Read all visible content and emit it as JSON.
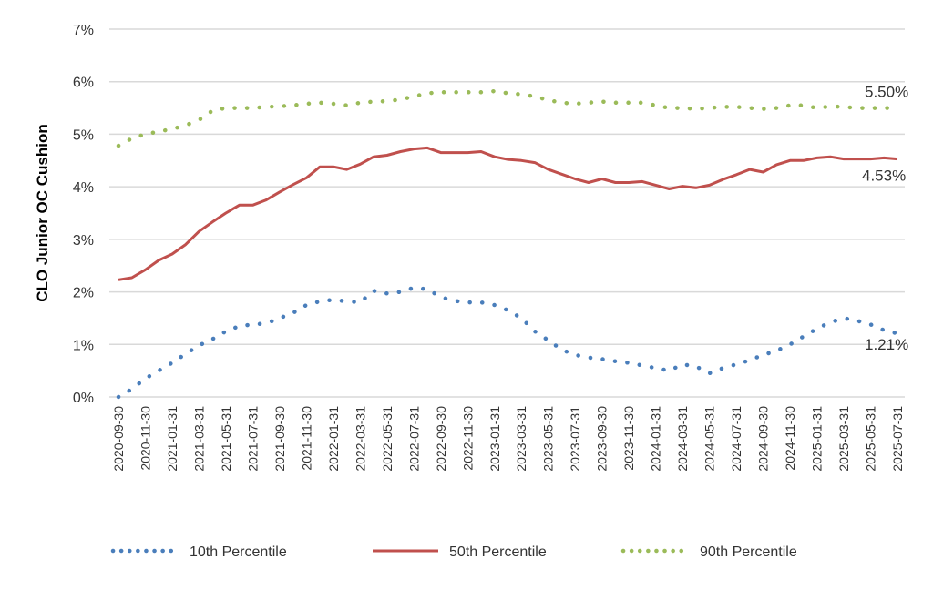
{
  "chart_data": {
    "type": "line",
    "title": "",
    "xlabel": "",
    "ylabel": "CLO Junior OC Cushion",
    "ylim": [
      0,
      7
    ],
    "yticks": [
      "0%",
      "1%",
      "2%",
      "3%",
      "4%",
      "5%",
      "6%",
      "7%"
    ],
    "grid": true,
    "legend_position": "bottom",
    "x": [
      "2020-09-30",
      "2020-10-31",
      "2020-11-30",
      "2020-12-31",
      "2021-01-31",
      "2021-02-28",
      "2021-03-31",
      "2021-04-30",
      "2021-05-31",
      "2021-06-30",
      "2021-07-31",
      "2021-08-31",
      "2021-09-30",
      "2021-10-31",
      "2021-11-30",
      "2021-12-31",
      "2022-01-31",
      "2022-02-28",
      "2022-03-31",
      "2022-04-30",
      "2022-05-31",
      "2022-06-30",
      "2022-07-31",
      "2022-08-31",
      "2022-09-30",
      "2022-10-31",
      "2022-11-30",
      "2022-12-31",
      "2023-01-31",
      "2023-02-28",
      "2023-03-31",
      "2023-04-30",
      "2023-05-31",
      "2023-06-30",
      "2023-07-31",
      "2023-08-31",
      "2023-09-30",
      "2023-10-31",
      "2023-11-30",
      "2023-12-31",
      "2024-01-31",
      "2024-02-29",
      "2024-03-31",
      "2024-04-30",
      "2024-05-31",
      "2024-06-30",
      "2024-07-31",
      "2024-08-31",
      "2024-09-30",
      "2024-10-31",
      "2024-11-30",
      "2024-12-31",
      "2025-01-31",
      "2025-02-28",
      "2025-03-31",
      "2025-04-30",
      "2025-05-31",
      "2025-06-30",
      "2025-07-31"
    ],
    "series": [
      {
        "name": "10th Percentile",
        "color": "#4a7ebb",
        "style": "dotted",
        "values": [
          0.0,
          0.15,
          0.35,
          0.5,
          0.65,
          0.82,
          0.98,
          1.1,
          1.25,
          1.35,
          1.38,
          1.4,
          1.5,
          1.6,
          1.75,
          1.82,
          1.85,
          1.82,
          1.8,
          2.02,
          1.97,
          2.0,
          2.08,
          2.05,
          1.9,
          1.83,
          1.8,
          1.8,
          1.75,
          1.65,
          1.5,
          1.25,
          1.08,
          0.9,
          0.8,
          0.75,
          0.72,
          0.68,
          0.65,
          0.6,
          0.55,
          0.5,
          0.62,
          0.58,
          0.45,
          0.55,
          0.62,
          0.7,
          0.8,
          0.88,
          1.0,
          1.15,
          1.3,
          1.42,
          1.5,
          1.45,
          1.38,
          1.27,
          1.21
        ]
      },
      {
        "name": "50th Percentile",
        "color": "#c0504d",
        "style": "solid",
        "values": [
          2.23,
          2.27,
          2.42,
          2.6,
          2.72,
          2.9,
          3.15,
          3.33,
          3.5,
          3.65,
          3.65,
          3.75,
          3.9,
          4.04,
          4.17,
          4.38,
          4.38,
          4.33,
          4.43,
          4.57,
          4.6,
          4.67,
          4.72,
          4.74,
          4.65,
          4.65,
          4.65,
          4.67,
          4.57,
          4.52,
          4.5,
          4.46,
          4.33,
          4.24,
          4.15,
          4.08,
          4.15,
          4.08,
          4.08,
          4.1,
          4.03,
          3.96,
          4.01,
          3.98,
          4.03,
          4.14,
          4.23,
          4.33,
          4.28,
          4.42,
          4.5,
          4.5,
          4.55,
          4.57,
          4.53,
          4.53,
          4.53,
          4.55,
          4.53
        ]
      },
      {
        "name": "90th Percentile",
        "color": "#9bbb59",
        "style": "dotted",
        "values": [
          4.78,
          4.92,
          5.0,
          5.05,
          5.1,
          5.17,
          5.27,
          5.45,
          5.5,
          5.5,
          5.5,
          5.52,
          5.53,
          5.55,
          5.58,
          5.6,
          5.58,
          5.55,
          5.6,
          5.62,
          5.63,
          5.66,
          5.72,
          5.78,
          5.8,
          5.8,
          5.8,
          5.8,
          5.82,
          5.78,
          5.76,
          5.72,
          5.65,
          5.6,
          5.58,
          5.6,
          5.62,
          5.6,
          5.6,
          5.6,
          5.55,
          5.5,
          5.5,
          5.48,
          5.5,
          5.52,
          5.52,
          5.5,
          5.48,
          5.5,
          5.55,
          5.55,
          5.5,
          5.53,
          5.52,
          5.5,
          5.5,
          5.5,
          5.5
        ]
      }
    ],
    "annotations": [
      {
        "series": "90th Percentile",
        "text": "5.50%"
      },
      {
        "series": "50th Percentile",
        "text": "4.53%"
      },
      {
        "series": "10th Percentile",
        "text": "1.21%"
      }
    ],
    "xtick_every": 2
  }
}
